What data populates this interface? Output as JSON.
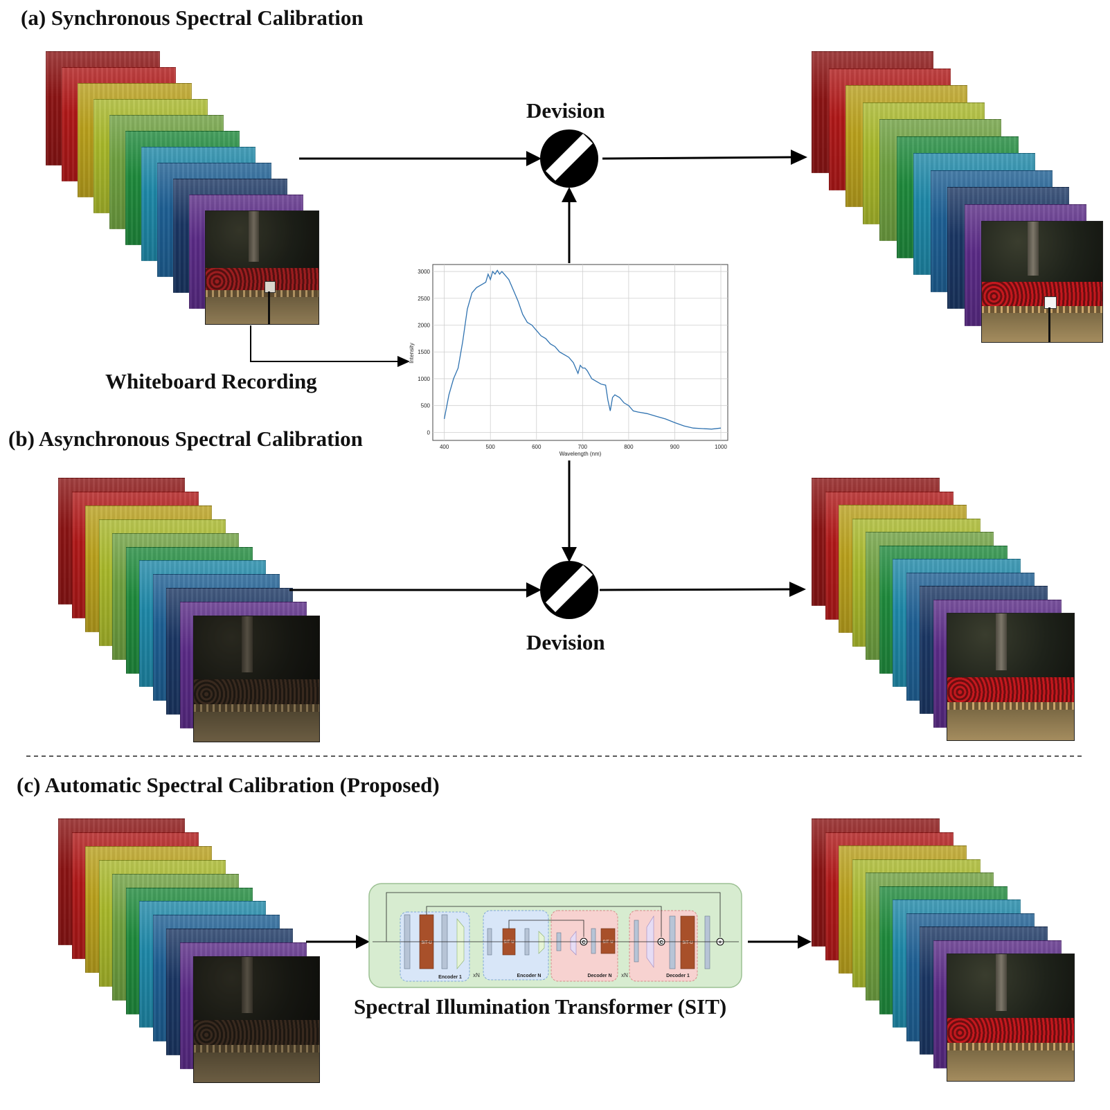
{
  "sections": {
    "a": {
      "title": "(a) Synchronous Spectral Calibration"
    },
    "b": {
      "title": "(b) Asynchronous Spectral Calibration"
    },
    "c": {
      "title": "(c) Automatic Spectral Calibration (Proposed)"
    }
  },
  "labels": {
    "division_top": "Devision",
    "division_bottom": "Devision",
    "whiteboard": "Whiteboard Recording",
    "sit": "Spectral Illumination Transformer (SIT)"
  },
  "sit_blocks": {
    "encoder_1": "Encoder 1",
    "encoder_n": "Encoder N",
    "decoder_n": "Decoder N",
    "decoder_1": "Decoder 1",
    "situ": "SIT-U",
    "repeat": "xN",
    "concat_symbol": "C",
    "add_symbol": "+"
  },
  "band_colors": [
    "#8b1414",
    "#b01818",
    "#b9a01c",
    "#a9b82a",
    "#6fa040",
    "#1f8a3c",
    "#1e88a8",
    "#1d5f93",
    "#1a3663",
    "#5a2a86"
  ],
  "chart_data": {
    "type": "line",
    "xlabel": "Wavelength (nm)",
    "ylabel": "Intensity",
    "xlim": [
      375,
      1015
    ],
    "ylim": [
      -150,
      3130
    ],
    "xticks": [
      400,
      500,
      600,
      700,
      800,
      900,
      1000
    ],
    "yticks": [
      0,
      500,
      1000,
      1500,
      2000,
      2500,
      3000
    ],
    "grid": true,
    "series": [
      {
        "color": "#2f72b0",
        "x": [
          400,
          410,
          420,
          430,
          440,
          450,
          460,
          470,
          480,
          490,
          495,
          500,
          505,
          510,
          515,
          520,
          525,
          530,
          540,
          550,
          560,
          570,
          580,
          590,
          600,
          610,
          620,
          630,
          640,
          650,
          660,
          670,
          680,
          690,
          695,
          700,
          705,
          710,
          720,
          730,
          740,
          750,
          755,
          760,
          765,
          770,
          780,
          790,
          800,
          810,
          820,
          840,
          860,
          880,
          900,
          920,
          940,
          960,
          980,
          1000
        ],
        "y": [
          250,
          700,
          1000,
          1200,
          1700,
          2300,
          2600,
          2700,
          2750,
          2800,
          2950,
          2850,
          3000,
          2950,
          3020,
          2950,
          3000,
          2950,
          2850,
          2650,
          2450,
          2200,
          2050,
          2000,
          1900,
          1800,
          1750,
          1650,
          1600,
          1500,
          1450,
          1400,
          1300,
          1100,
          1250,
          1200,
          1200,
          1150,
          1000,
          950,
          900,
          880,
          600,
          400,
          650,
          700,
          650,
          550,
          500,
          400,
          380,
          350,
          300,
          250,
          180,
          120,
          80,
          70,
          60,
          80
        ]
      }
    ]
  }
}
